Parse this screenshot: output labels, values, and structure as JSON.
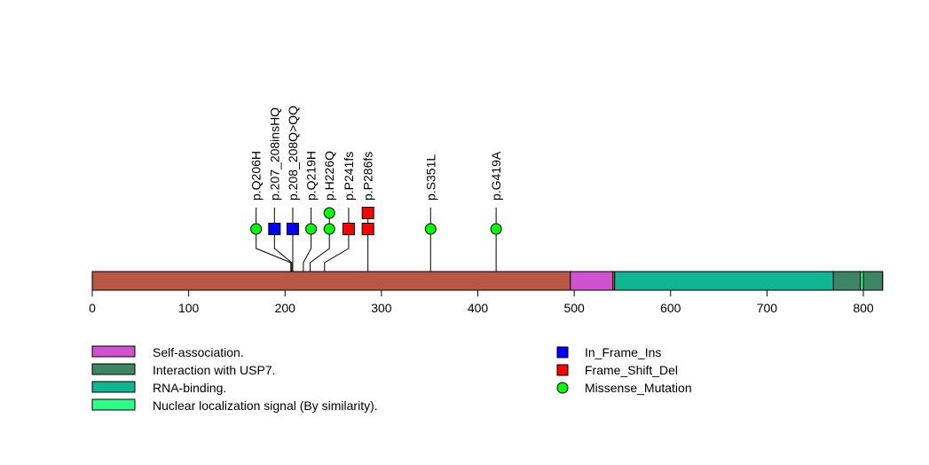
{
  "chart_data": {
    "type": "lollipop",
    "title": "",
    "protein_length": 820,
    "xlim": [
      0,
      820
    ],
    "x_ticks": [
      0,
      100,
      200,
      300,
      400,
      500,
      600,
      700,
      800
    ],
    "backbone_color": "#B85743",
    "domains": [
      {
        "name": "Self-association.",
        "start": 496,
        "end": 540,
        "color": "#D152CF"
      },
      {
        "name": "RNA-binding.",
        "start": 542,
        "end": 769,
        "color": "#0FB691"
      },
      {
        "name": "Interaction with USP7.",
        "start": 769,
        "end": 797,
        "color": "#3E8565"
      },
      {
        "name": "Nuclear localization signal (By similarity).",
        "start": 797,
        "end": 800,
        "color": "#2EFF8A"
      },
      {
        "name": "Interaction with USP7.",
        "start": 800,
        "end": 820,
        "color": "#3E8565"
      }
    ],
    "mutations": [
      {
        "label": "p.Q206H",
        "position": 206,
        "type": "Missense_Mutation",
        "count": 1,
        "label_pos": 170
      },
      {
        "label": "p.207_208insHQ",
        "position": 207,
        "type": "In_Frame_Ins",
        "count": 1,
        "label_pos": 189
      },
      {
        "label": "p.208_208Q>QQ",
        "position": 208,
        "type": "In_Frame_Ins",
        "count": 1,
        "label_pos": 208
      },
      {
        "label": "p.Q219H",
        "position": 219,
        "type": "Missense_Mutation",
        "count": 1,
        "label_pos": 227
      },
      {
        "label": "p.H226Q",
        "position": 226,
        "type": "Missense_Mutation",
        "count": 2,
        "label_pos": 246
      },
      {
        "label": "p.P241fs",
        "position": 241,
        "type": "Frame_Shift_Del",
        "count": 1,
        "label_pos": 266
      },
      {
        "label": "p.P286fs",
        "position": 286,
        "type": "Frame_Shift_Del",
        "count": 2,
        "label_pos": 286
      },
      {
        "label": "p.S351L",
        "position": 351,
        "type": "Missense_Mutation",
        "count": 1,
        "label_pos": 351
      },
      {
        "label": "p.G419A",
        "position": 419,
        "type": "Missense_Mutation",
        "count": 1,
        "label_pos": 419
      }
    ],
    "mutation_colors": {
      "In_Frame_Ins": "#0000FF",
      "Frame_Shift_Del": "#FF0000",
      "Missense_Mutation": "#00FF00"
    },
    "domain_legend": [
      {
        "label": "Self-association.",
        "color": "#D152CF"
      },
      {
        "label": "Interaction with USP7.",
        "color": "#3E8565"
      },
      {
        "label": "RNA-binding.",
        "color": "#0FB691"
      },
      {
        "label": "Nuclear localization signal (By similarity).",
        "color": "#2EFF8A"
      }
    ],
    "mutation_legend": [
      {
        "label": "In_Frame_Ins",
        "shape": "square",
        "color": "#0000FF"
      },
      {
        "label": "Frame_Shift_Del",
        "shape": "square",
        "color": "#FF0000"
      },
      {
        "label": "Missense_Mutation",
        "shape": "circle",
        "color": "#00FF00"
      }
    ]
  }
}
